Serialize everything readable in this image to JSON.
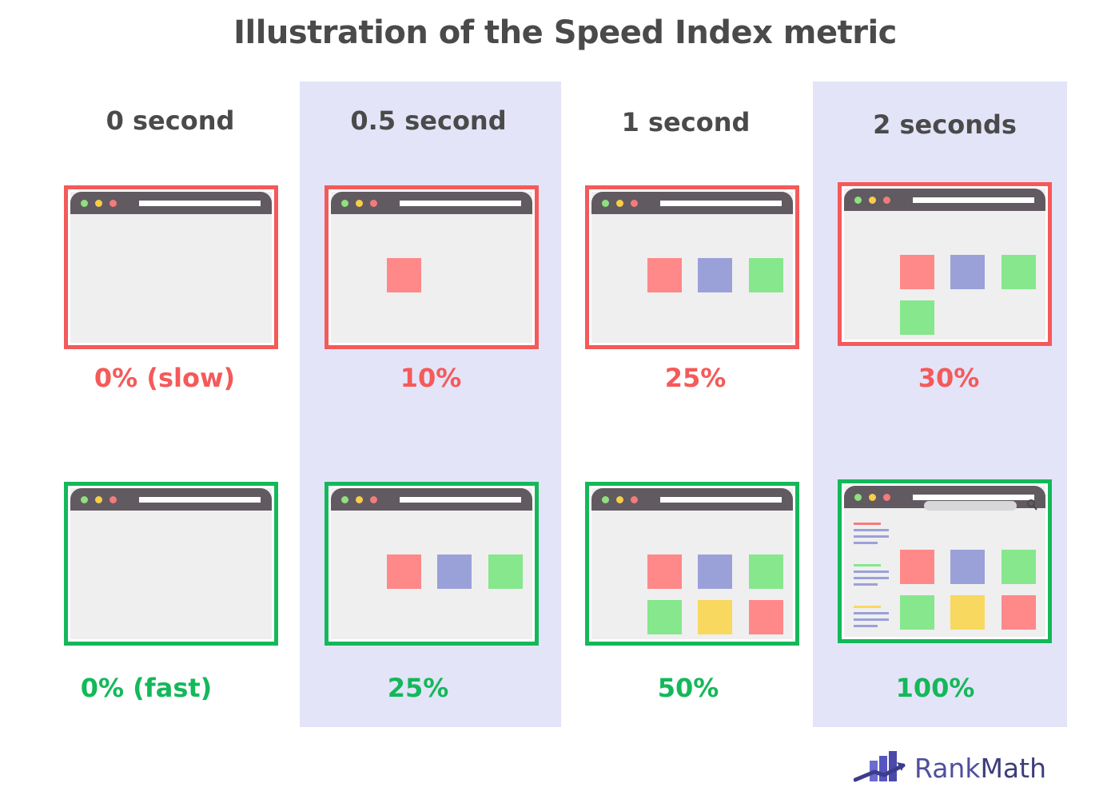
{
  "title": "Illustration of the Speed Index metric",
  "columns": [
    {
      "time": "0 second",
      "slow": "0% (slow)",
      "fast": "0% (fast)"
    },
    {
      "time": "0.5 second",
      "slow": "10%",
      "fast": "25%"
    },
    {
      "time": "1 second",
      "slow": "25%",
      "fast": "50%"
    },
    {
      "time": "2 seconds",
      "slow": "30%",
      "fast": "100%"
    }
  ],
  "brand": {
    "name_part1": "Rank",
    "name_part2": "Math"
  },
  "colors": {
    "slow": "#f45a5a",
    "fast": "#14b85a",
    "band": "#e4e4f8",
    "text": "#4a4a4a",
    "brand": "#4f4f9e"
  }
}
